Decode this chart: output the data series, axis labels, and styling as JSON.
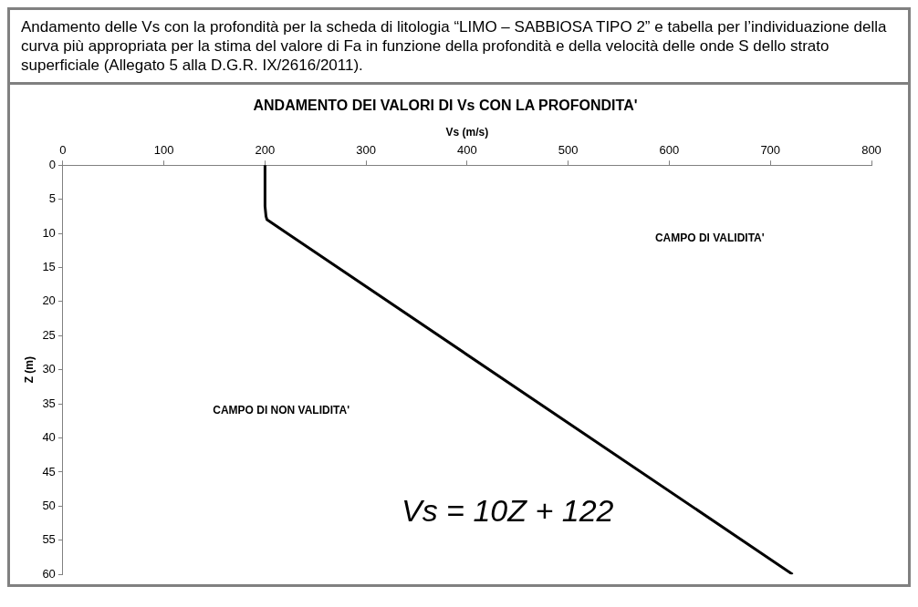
{
  "chart_data": {
    "type": "line",
    "title": "ANDAMENTO DEI VALORI DI Vs CON LA PROFONDITA'",
    "xlabel": "Vs (m/s)",
    "ylabel": "Z (m)",
    "x": [
      200,
      200,
      201,
      202,
      722
    ],
    "series": [
      {
        "color": "#000000",
        "values": [
          0,
          6,
          7.5,
          8,
          60
        ]
      }
    ],
    "xlim": [
      0,
      800
    ],
    "xticks": [
      0,
      100,
      200,
      300,
      400,
      500,
      600,
      700,
      800
    ],
    "ylim": [
      60,
      0
    ],
    "yticks": [
      0,
      5,
      10,
      15,
      20,
      25,
      30,
      35,
      40,
      45,
      50,
      55,
      60
    ],
    "grid": false,
    "legend": false,
    "marker": "none",
    "line_style": "solid",
    "annotations": [
      "Andamento delle Vs con la profondità per la scheda di litologia  “LIMO – SABBIOSA TIPO 2” e tabella per l’individuazione della curva più appropriata per la stima del valore di Fa in funzione della profondità e della velocità delle onde S dello strato superficiale (Allegato 5 alla D.G.R. IX/2616/2011).",
      "CAMPO DI VALIDITA'",
      "CAMPO DI NON VALIDITA'",
      "Vs = 10Z + 122"
    ]
  }
}
